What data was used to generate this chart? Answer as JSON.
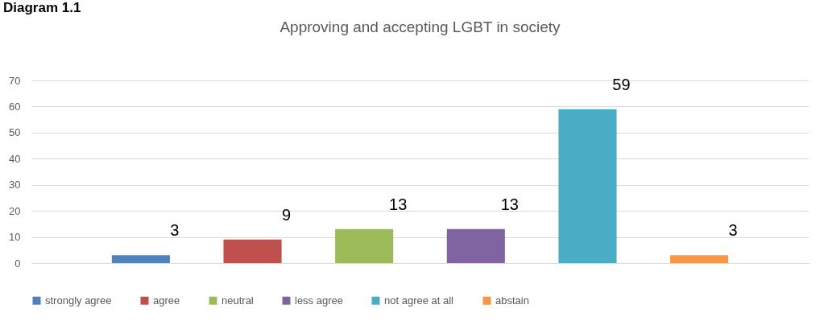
{
  "chart_data": {
    "type": "bar",
    "title": "Approving and accepting LGBT in society",
    "annotations": [
      "Diagram 1.1"
    ],
    "categories": [
      null
    ],
    "series": [
      {
        "name": "strongly agree",
        "color": "#4f81bd",
        "values": [
          3
        ]
      },
      {
        "name": "agree",
        "color": "#c0504d",
        "values": [
          9
        ]
      },
      {
        "name": "neutral",
        "color": "#9bbb59",
        "values": [
          13
        ]
      },
      {
        "name": "less agree",
        "color": "#8064a2",
        "values": [
          13
        ]
      },
      {
        "name": "not agree at all",
        "color": "#4bacc6",
        "values": [
          59
        ]
      },
      {
        "name": "abstain",
        "color": "#f79646",
        "values": [
          3
        ]
      }
    ],
    "ylim": [
      0,
      70
    ],
    "yticks": [
      0,
      10,
      20,
      30,
      40,
      50,
      60,
      70
    ],
    "grid": "y",
    "legend": "bottom",
    "data_labels": true
  }
}
